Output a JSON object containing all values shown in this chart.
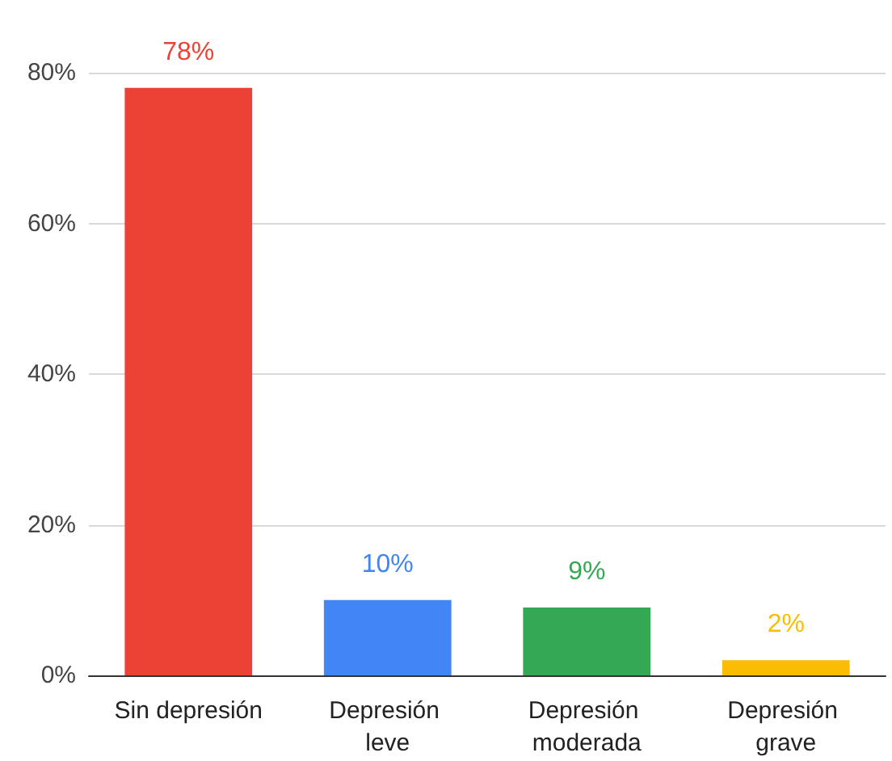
{
  "chart_data": {
    "type": "bar",
    "categories": [
      "Sin depresión",
      "Depresión leve",
      "Depresión moderada",
      "Depresión grave"
    ],
    "values": [
      78,
      10,
      9,
      2
    ],
    "colors": [
      "#ea4335",
      "#4285f4",
      "#34a853",
      "#fbbc04"
    ],
    "value_labels": [
      "78%",
      "10%",
      "9%",
      "2%"
    ],
    "ylim": [
      0,
      80
    ],
    "yticks": [
      {
        "value": 0,
        "label": "0%"
      },
      {
        "value": 20,
        "label": "20%"
      },
      {
        "value": 40,
        "label": "40%"
      },
      {
        "value": 60,
        "label": "60%"
      },
      {
        "value": 80,
        "label": "80%"
      }
    ],
    "grid": "y"
  }
}
